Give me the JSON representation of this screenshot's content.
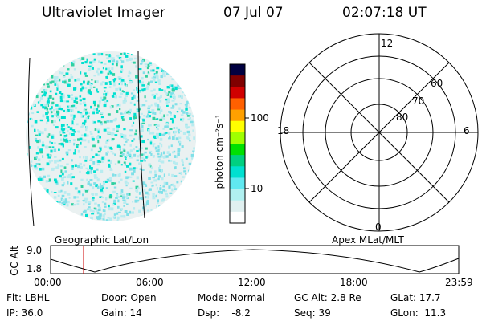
{
  "header": {
    "instrument": "Ultraviolet Imager",
    "date": "07 Jul 07",
    "time": "02:07:18 UT"
  },
  "colorbar": {
    "unit_label": "photon cm⁻²s⁻¹",
    "ticks": [
      "100",
      "10"
    ],
    "colors": [
      "#000040",
      "#800000",
      "#d00000",
      "#ff6000",
      "#ffa000",
      "#ffff00",
      "#a0ff00",
      "#00e000",
      "#00d080",
      "#00e0d0",
      "#60e8f0",
      "#b0f0f0",
      "#e0f0f0",
      "#ffffff"
    ]
  },
  "polar_plot": {
    "mlt_labels": {
      "top": "12",
      "right": "6",
      "bottom": "0",
      "left": "18"
    },
    "lat_labels": [
      "60",
      "70",
      "80"
    ]
  },
  "orbit_panel": {
    "ylabel": "GC Alt",
    "yticks": [
      "9.0",
      "1.8"
    ],
    "left_caption": "Geographic Lat/Lon",
    "right_caption": "Apex MLat/MLT",
    "xticks": [
      "00:00",
      "06:00",
      "12:00",
      "18:00",
      "23:59"
    ],
    "marker_time": "02:07"
  },
  "info": {
    "row1": [
      "Flt: LBHL",
      "Door: Open",
      "Mode: Normal",
      "GC Alt: 2.8 Re",
      "GLat: 17.7"
    ],
    "row2": [
      "IP: 36.0",
      "Gain: 14",
      "Dsp:    -8.2",
      "Seq: 39",
      "GLon:  11.3"
    ]
  },
  "colors": {
    "marker": "#cc0000",
    "image_bg": "#e8efef",
    "aurora_dots": [
      "#00e0d0",
      "#30d0a0",
      "#80e0e8",
      "#b8ecf0"
    ]
  }
}
